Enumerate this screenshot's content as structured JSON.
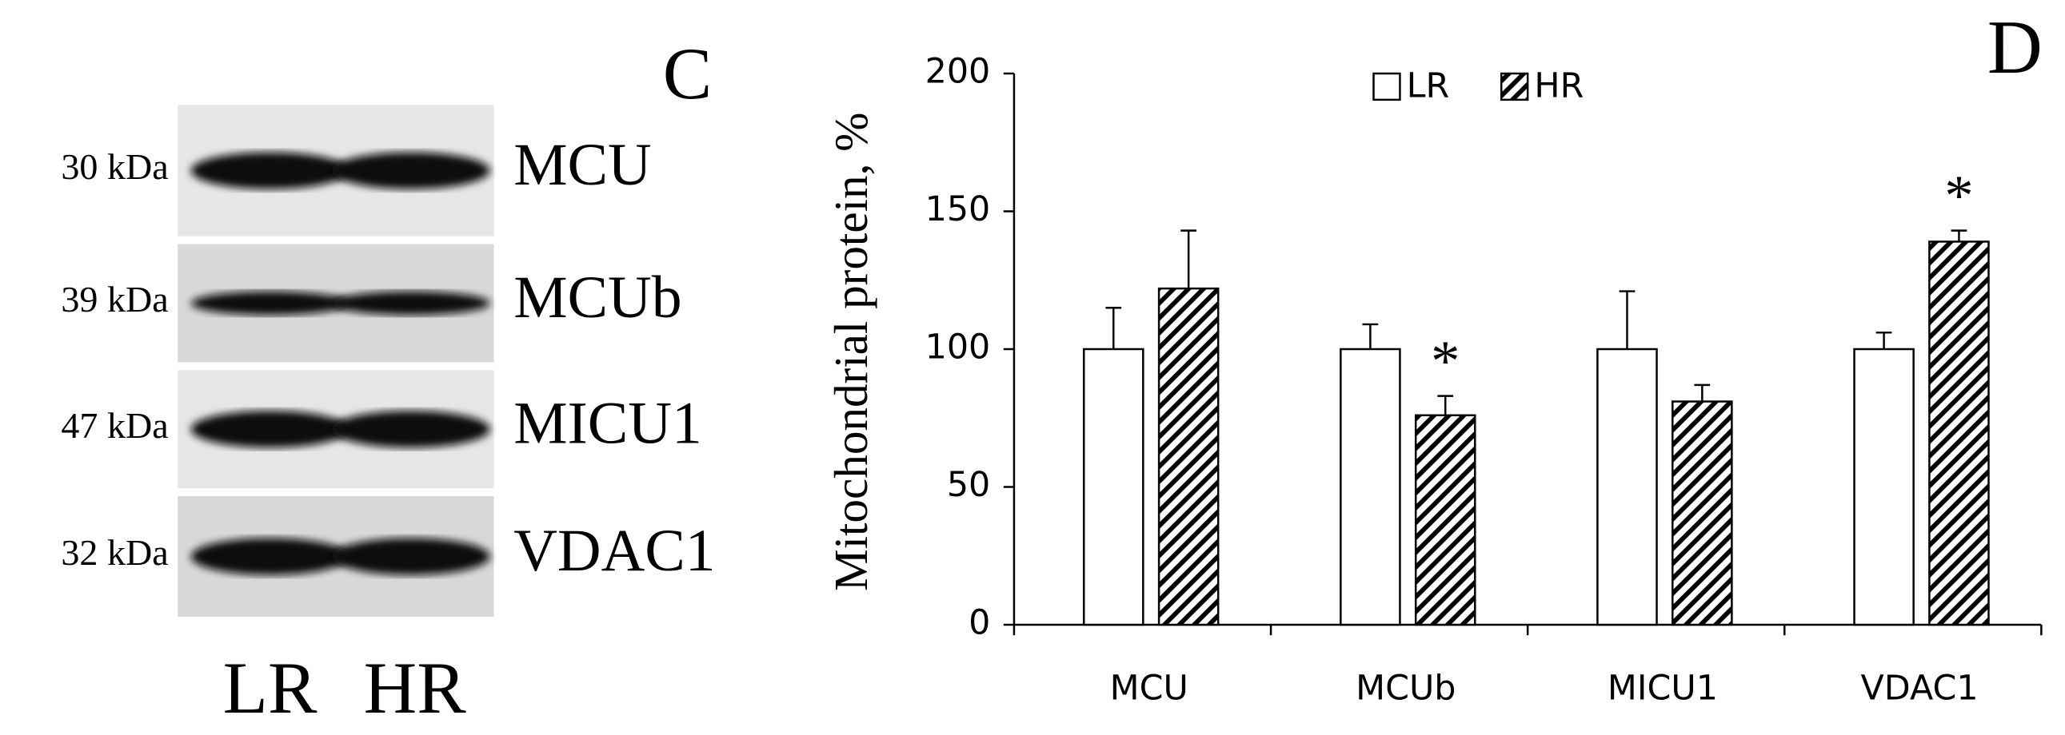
{
  "blot": {
    "label": "C",
    "rows": [
      {
        "weight": "30 kDa",
        "protein": "MCU"
      },
      {
        "weight": "39 kDa",
        "protein": "MCUb"
      },
      {
        "weight": "47 kDa",
        "protein": "MICU1"
      },
      {
        "weight": "32 kDa",
        "protein": "VDAC1"
      }
    ],
    "lanes": [
      "LR",
      "HR"
    ]
  },
  "chart_data": {
    "type": "bar",
    "label": "D",
    "y_label": "Mitochondrial protein, %",
    "categories": [
      "MCU",
      "MCUb",
      "MICU1",
      "VDAC1"
    ],
    "series": [
      {
        "name": "LR",
        "color": "#ffffff",
        "values": [
          100,
          100,
          100,
          100
        ],
        "errors": [
          15,
          9,
          21,
          6
        ]
      },
      {
        "name": "HR",
        "color": "#000000",
        "pattern": "hatch",
        "values": [
          122,
          76,
          81,
          139
        ],
        "errors": [
          21,
          7,
          6,
          4
        ]
      }
    ],
    "annotations": [
      {
        "text": "*",
        "category": "MCUb",
        "series": "HR"
      },
      {
        "text": "*",
        "category": "VDAC1",
        "series": "HR"
      }
    ],
    "ylim": [
      0,
      200
    ],
    "yticks": [
      0,
      50,
      100,
      150,
      200
    ],
    "legend": "top"
  }
}
